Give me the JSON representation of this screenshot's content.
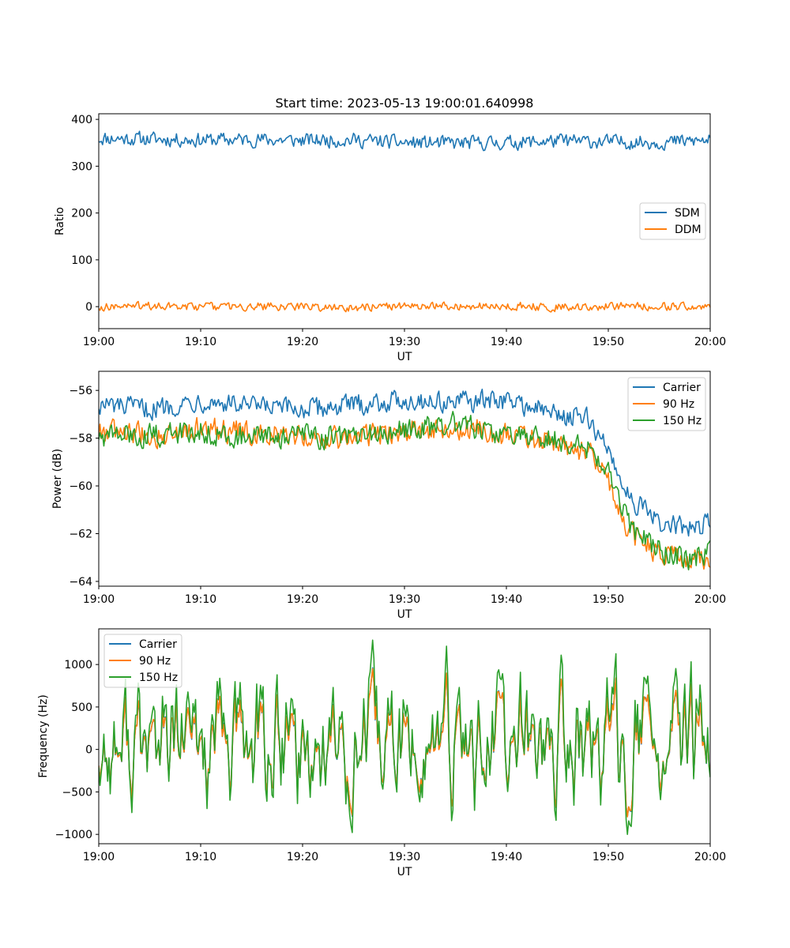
{
  "chart_data": [
    {
      "type": "line",
      "title": "Start time: 2023-05-13 19:00:01.640998",
      "xlabel": "UT",
      "ylabel": "Ratio",
      "xlim": [
        "19:00",
        "20:00"
      ],
      "xticks": [
        "19:00",
        "19:10",
        "19:20",
        "19:30",
        "19:40",
        "19:50",
        "20:00"
      ],
      "ylim": [
        -47,
        412
      ],
      "yticks": [
        "0",
        "100",
        "200",
        "300",
        "400"
      ],
      "ytick_values": [
        0,
        100,
        200,
        300,
        400
      ],
      "grid": false,
      "legend_position": "center-right",
      "x": [
        "19:00",
        "19:05",
        "19:10",
        "19:15",
        "19:20",
        "19:25",
        "19:30",
        "19:35",
        "19:40",
        "19:45",
        "19:50",
        "19:55",
        "20:00"
      ],
      "series": [
        {
          "name": "SDM",
          "color": "#1f77b4",
          "values": [
            360,
            358,
            356,
            357,
            355,
            356,
            350,
            349,
            350,
            354,
            352,
            351,
            355
          ]
        },
        {
          "name": "DDM",
          "color": "#ff7f0e",
          "values": [
            0,
            2,
            -1,
            1,
            0,
            -2,
            1,
            0,
            2,
            -1,
            0,
            1,
            -2
          ]
        }
      ],
      "noise": [
        14,
        8
      ]
    },
    {
      "type": "line",
      "title": "",
      "xlabel": "UT",
      "ylabel": "Power (dB)",
      "xlim": [
        "19:00",
        "20:00"
      ],
      "xticks": [
        "19:00",
        "19:10",
        "19:20",
        "19:30",
        "19:40",
        "19:50",
        "20:00"
      ],
      "ylim": [
        -64.2,
        -55.2
      ],
      "yticks": [
        "−56",
        "−58",
        "−60",
        "−62",
        "−64"
      ],
      "ytick_values": [
        -56,
        -58,
        -60,
        -62,
        -64
      ],
      "grid": false,
      "legend_position": "upper-right",
      "x": [
        "19:00",
        "19:05",
        "19:10",
        "19:15",
        "19:20",
        "19:25",
        "19:30",
        "19:35",
        "19:40",
        "19:45",
        "19:48",
        "19:50",
        "19:52",
        "19:55",
        "19:58",
        "20:00"
      ],
      "series": [
        {
          "name": "Carrier",
          "color": "#1f77b4",
          "values": [
            -56.6,
            -56.8,
            -56.4,
            -56.7,
            -56.8,
            -56.6,
            -56.4,
            -56.5,
            -56.4,
            -57.0,
            -57.2,
            -58.5,
            -60.4,
            -61.6,
            -61.8,
            -61.5
          ]
        },
        {
          "name": "90 Hz",
          "color": "#ff7f0e",
          "values": [
            -57.7,
            -57.9,
            -57.6,
            -57.8,
            -57.9,
            -58.0,
            -57.7,
            -57.5,
            -57.9,
            -58.2,
            -58.6,
            -59.8,
            -61.9,
            -62.9,
            -63.2,
            -62.9
          ]
        },
        {
          "name": "150 Hz",
          "color": "#2ca02c",
          "values": [
            -57.9,
            -57.9,
            -57.7,
            -58.0,
            -57.9,
            -58.0,
            -57.7,
            -57.4,
            -57.9,
            -58.1,
            -58.4,
            -59.5,
            -61.7,
            -62.7,
            -63.1,
            -62.8
          ]
        }
      ],
      "noise": [
        0.4,
        0.45,
        0.45
      ]
    },
    {
      "type": "line",
      "title": "",
      "xlabel": "UT",
      "ylabel": "Frequency (Hz)",
      "xlim": [
        "19:00",
        "20:00"
      ],
      "xticks": [
        "19:00",
        "19:10",
        "19:20",
        "19:30",
        "19:40",
        "19:50",
        "20:00"
      ],
      "ylim": [
        -1110,
        1420
      ],
      "yticks": [
        "1000",
        "500",
        "0",
        "−500",
        "−1000"
      ],
      "ytick_values": [
        1000,
        500,
        0,
        -500,
        -1000
      ],
      "grid": false,
      "legend_position": "upper-left",
      "x": [
        "19:00",
        "19:10",
        "19:20",
        "19:30",
        "19:40",
        "19:50",
        "20:00"
      ],
      "series": [
        {
          "name": "Carrier",
          "color": "#1f77b4",
          "values": [
            0,
            0,
            0,
            0,
            0,
            0,
            0
          ],
          "amplitude": 330
        },
        {
          "name": "90 Hz",
          "color": "#ff7f0e",
          "values": [
            0,
            0,
            0,
            0,
            0,
            0,
            0
          ],
          "amplitude": 330
        },
        {
          "name": "150 Hz",
          "color": "#2ca02c",
          "values": [
            0,
            0,
            0,
            0,
            0,
            0,
            0
          ],
          "amplitude": 430
        }
      ]
    }
  ]
}
